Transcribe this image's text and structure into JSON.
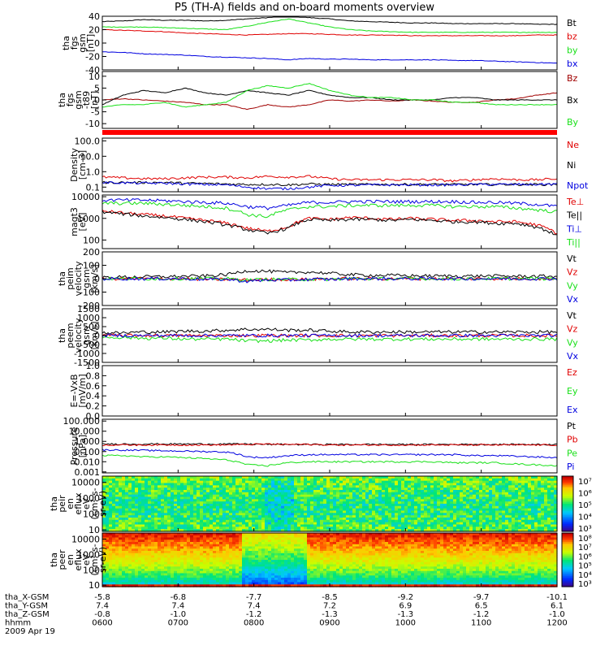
{
  "title": "P5 (TH-A) fields and on-board moments overview",
  "colors": {
    "black": "#000000",
    "red": "#e00000",
    "green": "#18e018",
    "blue": "#0000e0",
    "darkred": "#a00000",
    "spec_bg": "#1a33ff"
  },
  "chart_data": [
    {
      "type": "line",
      "ylabel": [
        "tha",
        "fgs",
        "gsm",
        "[nT]"
      ],
      "yticks": [
        "40",
        "20",
        "0",
        "-20",
        "-40"
      ],
      "ylim": [
        -40,
        40
      ],
      "series": [
        {
          "name": "Bt",
          "color": "#000000",
          "y": [
            32,
            33,
            35,
            34,
            34,
            33,
            34,
            36,
            38,
            40,
            38,
            36,
            33,
            32,
            31,
            30,
            30,
            29,
            29,
            29,
            29,
            28,
            28
          ]
        },
        {
          "name": "bz",
          "color": "#e00000",
          "y": [
            20,
            19,
            18,
            17,
            15,
            14,
            13,
            12,
            13,
            14,
            14,
            13,
            12,
            12,
            12,
            11,
            11,
            11,
            11,
            11,
            11,
            12,
            12
          ]
        },
        {
          "name": "by",
          "color": "#18e018",
          "y": [
            24,
            24,
            24,
            23,
            22,
            21,
            20,
            25,
            31,
            36,
            30,
            24,
            20,
            18,
            17,
            16,
            16,
            16,
            16,
            16,
            16,
            16,
            16
          ]
        },
        {
          "name": "bx",
          "color": "#0000e0",
          "y": [
            -13,
            -14,
            -16,
            -17,
            -18,
            -20,
            -21,
            -22,
            -23,
            -25,
            -23,
            -24,
            -24,
            -25,
            -25,
            -25,
            -25,
            -26,
            -26,
            -27,
            -28,
            -29,
            -30
          ]
        }
      ]
    },
    {
      "type": "line",
      "ylabel": [
        "tha",
        "fgs",
        "gsm",
        "-t89",
        "[nT]"
      ],
      "yticks": [
        "10",
        "5",
        "0",
        "-5",
        "-10"
      ],
      "ylim": [
        -12,
        12
      ],
      "series": [
        {
          "name": "Bz",
          "color": "#a00000",
          "y": [
            0,
            0.5,
            0,
            -0.5,
            -1,
            -2,
            -2,
            -4,
            -2,
            -3,
            -2,
            0,
            -0.5,
            0,
            -0.5,
            0,
            -0.5,
            -1,
            -1,
            0,
            0.5,
            2,
            3
          ]
        },
        {
          "name": "Bx",
          "color": "#000000",
          "y": [
            -2,
            2,
            4,
            3,
            5,
            3,
            2,
            4,
            3,
            2,
            4,
            2,
            1,
            1,
            0,
            0,
            0,
            1,
            1,
            0,
            0,
            0,
            0
          ]
        },
        {
          "name": "By",
          "color": "#18e018",
          "y": [
            -3,
            -2,
            -2,
            -1,
            -3,
            -2,
            -1,
            4,
            6,
            5,
            7,
            4,
            2,
            1,
            1,
            0,
            0,
            -1,
            -1,
            -2,
            -2,
            -2,
            -2
          ]
        }
      ]
    },
    {
      "type": "line",
      "ylabel": [
        "Density",
        "[cm-3]"
      ],
      "yscale": "log",
      "yticks": [
        "100.0",
        "10.0",
        "1.0",
        "0.1"
      ],
      "ylim": [
        0.05,
        150
      ],
      "series": [
        {
          "name": "Ne",
          "color": "#e00000",
          "y": [
            0.45,
            0.4,
            0.35,
            0.35,
            0.4,
            0.45,
            0.45,
            0.4,
            0.5,
            0.45,
            0.5,
            0.35,
            0.3,
            0.3,
            0.3,
            0.3,
            0.3,
            0.25,
            0.3,
            0.35,
            0.3,
            0.3,
            0.35
          ]
        },
        {
          "name": "Ni",
          "color": "#000000",
          "y": [
            0.2,
            0.2,
            0.2,
            0.2,
            0.18,
            0.17,
            0.16,
            0.15,
            0.15,
            0.14,
            0.16,
            0.15,
            0.15,
            0.15,
            0.15,
            0.15,
            0.15,
            0.15,
            0.15,
            0.15,
            0.15,
            0.15,
            0.15
          ]
        },
        {
          "name": "Npot",
          "color": "#0000e0",
          "y": [
            0.2,
            0.19,
            0.18,
            0.18,
            0.16,
            0.15,
            0.14,
            0.1,
            0.08,
            0.08,
            0.1,
            0.13,
            0.13,
            0.14,
            0.14,
            0.14,
            0.14,
            0.14,
            0.15,
            0.15,
            0.15,
            0.15,
            0.16
          ]
        }
      ]
    },
    {
      "type": "line",
      "ylabel": [
        "magt3",
        "[eV]"
      ],
      "yscale": "log",
      "yticks": [
        "10000",
        "1000",
        "100"
      ],
      "ylim": [
        40,
        12000
      ],
      "series": [
        {
          "name": "Te⊥",
          "color": "#e00000",
          "y": [
            2200,
            1800,
            1500,
            1300,
            1000,
            800,
            600,
            350,
            250,
            400,
            1000,
            900,
            1100,
            1000,
            900,
            1000,
            900,
            800,
            800,
            700,
            700,
            500,
            200
          ]
        },
        {
          "name": "Te||",
          "color": "#000000",
          "y": [
            2000,
            1600,
            1300,
            1100,
            900,
            700,
            500,
            300,
            200,
            350,
            900,
            800,
            900,
            900,
            800,
            900,
            800,
            700,
            700,
            600,
            600,
            400,
            150
          ]
        },
        {
          "name": "Ti⊥",
          "color": "#0000e0",
          "y": [
            7000,
            7000,
            7000,
            6500,
            6000,
            5500,
            5000,
            3500,
            3000,
            4000,
            5500,
            5500,
            6000,
            6000,
            6000,
            6000,
            6000,
            6000,
            5500,
            5500,
            5000,
            4500,
            3500
          ]
        },
        {
          "name": "Ti||",
          "color": "#18e018",
          "y": [
            5000,
            5000,
            5000,
            4500,
            4000,
            3500,
            3000,
            1500,
            1200,
            2500,
            3500,
            3500,
            4000,
            4000,
            4000,
            4000,
            4000,
            3500,
            3500,
            3500,
            3000,
            2500,
            2000
          ]
        }
      ]
    },
    {
      "type": "line",
      "ylabel": [
        "tha",
        "peim",
        "velocity",
        "gsm",
        "[km/s]"
      ],
      "yticks": [
        "200",
        "100",
        "0",
        "-100",
        "-200"
      ],
      "ylim": [
        -200,
        200
      ],
      "series": [
        {
          "name": "Vt",
          "color": "#000000",
          "y": [
            10,
            12,
            14,
            15,
            18,
            20,
            30,
            60,
            55,
            45,
            50,
            40,
            30,
            25,
            25,
            22,
            20,
            20,
            20,
            20,
            18,
            18,
            18
          ]
        },
        {
          "name": "Vz",
          "color": "#e00000",
          "y": [
            0,
            0,
            0,
            0,
            0,
            -5,
            -5,
            -10,
            -5,
            -5,
            -5,
            0,
            0,
            0,
            0,
            0,
            0,
            0,
            0,
            0,
            0,
            0,
            0
          ]
        },
        {
          "name": "Vy",
          "color": "#18e018",
          "y": [
            0,
            0,
            0,
            0,
            0,
            0,
            0,
            -10,
            -5,
            -5,
            -5,
            -5,
            0,
            0,
            0,
            0,
            0,
            0,
            0,
            0,
            0,
            0,
            0
          ]
        },
        {
          "name": "Vx",
          "color": "#0000e0",
          "y": [
            0,
            0,
            0,
            0,
            0,
            -5,
            -5,
            -20,
            -10,
            -10,
            -5,
            -5,
            0,
            0,
            0,
            0,
            0,
            0,
            0,
            0,
            0,
            0,
            0
          ]
        }
      ]
    },
    {
      "type": "line",
      "ylabel": [
        "tha",
        "peem",
        "velocity",
        "gsm",
        "[km/s]"
      ],
      "yticks": [
        "1500",
        "1000",
        "500",
        "0",
        "-500",
        "-1000",
        "-1500"
      ],
      "ylim": [
        -1500,
        1500
      ],
      "series": [
        {
          "name": "Vt",
          "color": "#000000",
          "y": [
            150,
            150,
            200,
            200,
            250,
            250,
            300,
            350,
            350,
            300,
            300,
            250,
            200,
            200,
            200,
            200,
            200,
            200,
            200,
            200,
            200,
            200,
            200
          ]
        },
        {
          "name": "Vz",
          "color": "#e00000",
          "y": [
            0,
            0,
            0,
            0,
            0,
            0,
            0,
            0,
            0,
            0,
            0,
            0,
            0,
            0,
            0,
            0,
            0,
            0,
            0,
            0,
            0,
            0,
            0
          ]
        },
        {
          "name": "Vy",
          "color": "#18e018",
          "y": [
            -100,
            -100,
            -150,
            -150,
            -200,
            -200,
            -200,
            -300,
            -300,
            -250,
            -250,
            -200,
            -200,
            -200,
            -200,
            -200,
            -200,
            -200,
            -200,
            -200,
            -200,
            -200,
            -200
          ]
        },
        {
          "name": "Vx",
          "color": "#0000e0",
          "y": [
            0,
            0,
            0,
            0,
            0,
            0,
            0,
            0,
            0,
            0,
            0,
            0,
            0,
            0,
            0,
            0,
            0,
            0,
            0,
            0,
            0,
            0,
            0
          ]
        }
      ]
    },
    {
      "type": "line",
      "ylabel": [
        "E=-VxB",
        "[mV/m]"
      ],
      "yticks": [
        "1.0",
        "0.8",
        "0.6",
        "0.4",
        "0.2",
        "0.0"
      ],
      "ylim": [
        0,
        1
      ],
      "series": [
        {
          "name": "Ez",
          "color": "#e00000",
          "y": []
        },
        {
          "name": "Ey",
          "color": "#18e018",
          "y": []
        },
        {
          "name": "Ex",
          "color": "#0000e0",
          "y": []
        }
      ]
    },
    {
      "type": "line",
      "ylabel": [
        "Pressure",
        "[nPa]"
      ],
      "yscale": "log",
      "yticks": [
        "100.000",
        "10.000",
        "1.000",
        "0.100",
        "0.010",
        "0.001"
      ],
      "ylim": [
        0.0008,
        150
      ],
      "series": [
        {
          "name": "Pt",
          "color": "#000000",
          "y": [
            0.55,
            0.55,
            0.55,
            0.55,
            0.55,
            0.55,
            0.55,
            0.55,
            0.5,
            0.5,
            0.5,
            0.5,
            0.5,
            0.5,
            0.5,
            0.5,
            0.5,
            0.5,
            0.5,
            0.5,
            0.5,
            0.5,
            0.5
          ]
        },
        {
          "name": "Pb",
          "color": "#e00000",
          "y": [
            0.45,
            0.45,
            0.45,
            0.45,
            0.45,
            0.45,
            0.45,
            0.5,
            0.55,
            0.5,
            0.5,
            0.45,
            0.45,
            0.45,
            0.45,
            0.45,
            0.45,
            0.45,
            0.45,
            0.45,
            0.45,
            0.45,
            0.45
          ]
        },
        {
          "name": "Pe",
          "color": "#18e018",
          "y": [
            0.04,
            0.04,
            0.03,
            0.03,
            0.025,
            0.02,
            0.015,
            0.005,
            0.004,
            0.008,
            0.01,
            0.01,
            0.01,
            0.01,
            0.01,
            0.01,
            0.01,
            0.008,
            0.008,
            0.008,
            0.006,
            0.005,
            0.004
          ]
        },
        {
          "name": "Pi",
          "color": "#0000e0",
          "y": [
            0.15,
            0.14,
            0.13,
            0.12,
            0.11,
            0.1,
            0.09,
            0.03,
            0.025,
            0.04,
            0.05,
            0.05,
            0.05,
            0.05,
            0.05,
            0.05,
            0.05,
            0.05,
            0.04,
            0.04,
            0.035,
            0.03,
            0.025
          ]
        }
      ]
    },
    {
      "type": "heatmap",
      "ylabel": [
        "tha",
        "peir",
        "en",
        "eflux",
        "eV",
        "(cm²-s-",
        "sr-eV)"
      ],
      "yscale": "log",
      "yticks": [
        "10000",
        "1000",
        "100",
        "10"
      ],
      "ylim": [
        8,
        25000
      ],
      "colorbar_ticks": [
        "10⁷",
        "10⁶",
        "10⁵",
        "10⁴",
        "10³"
      ]
    },
    {
      "type": "heatmap",
      "ylabel": [
        "tha",
        "peer",
        "en",
        "eflux",
        "eV",
        "(cm²-s-",
        "sr-eV)"
      ],
      "yscale": "log",
      "yticks": [
        "10000",
        "1000",
        "100",
        "10"
      ],
      "ylim": [
        8,
        25000
      ],
      "colorbar_ticks": [
        "10⁸",
        "10⁷",
        "10⁶",
        "10⁵",
        "10⁴",
        "10³"
      ]
    }
  ],
  "x_axis": {
    "labels": [
      "tha_X-GSM",
      "tha_Y-GSM",
      "tha_Z-GSM",
      "hhmm",
      "2009 Apr 19"
    ],
    "columns": [
      [
        "-5.8",
        "7.4",
        "-0.8",
        "0600"
      ],
      [
        "-6.8",
        "7.4",
        "-1.0",
        "0700"
      ],
      [
        "-7.7",
        "7.4",
        "-1.2",
        "0800"
      ],
      [
        "-8.5",
        "7.2",
        "-1.3",
        "0900"
      ],
      [
        "-9.2",
        "6.9",
        "-1.3",
        "1000"
      ],
      [
        "-9.7",
        "6.5",
        "-1.2",
        "1100"
      ],
      [
        "-10.1",
        "6.1",
        "-1.0",
        "1200"
      ]
    ]
  }
}
